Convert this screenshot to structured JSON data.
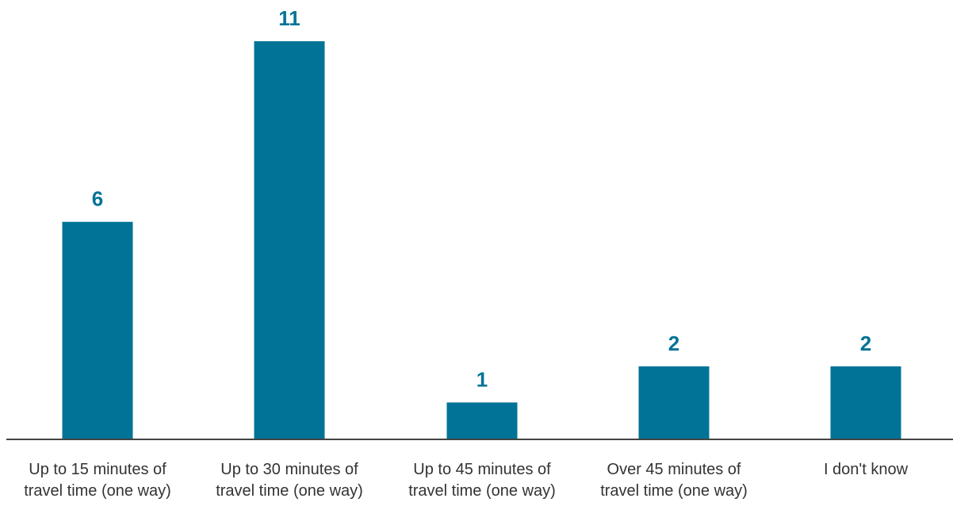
{
  "chart_data": {
    "type": "bar",
    "categories": [
      [
        "Up to 15 minutes of",
        "travel time (one way)"
      ],
      [
        "Up to 30 minutes of",
        "travel time (one way)"
      ],
      [
        "Up to 45 minutes of",
        "travel time (one way)"
      ],
      [
        "Over 45 minutes of",
        "travel time (one way)"
      ],
      [
        "I don't know"
      ]
    ],
    "values": [
      6,
      11,
      1,
      2,
      2
    ],
    "data_labels": [
      "6",
      "11",
      "1",
      "2",
      "2"
    ],
    "ylim": [
      0,
      11
    ],
    "grid": false,
    "legend": "none",
    "colors": {
      "bar": "#007396",
      "label": "#007396",
      "axis": "#444444",
      "text": "#333333"
    }
  }
}
